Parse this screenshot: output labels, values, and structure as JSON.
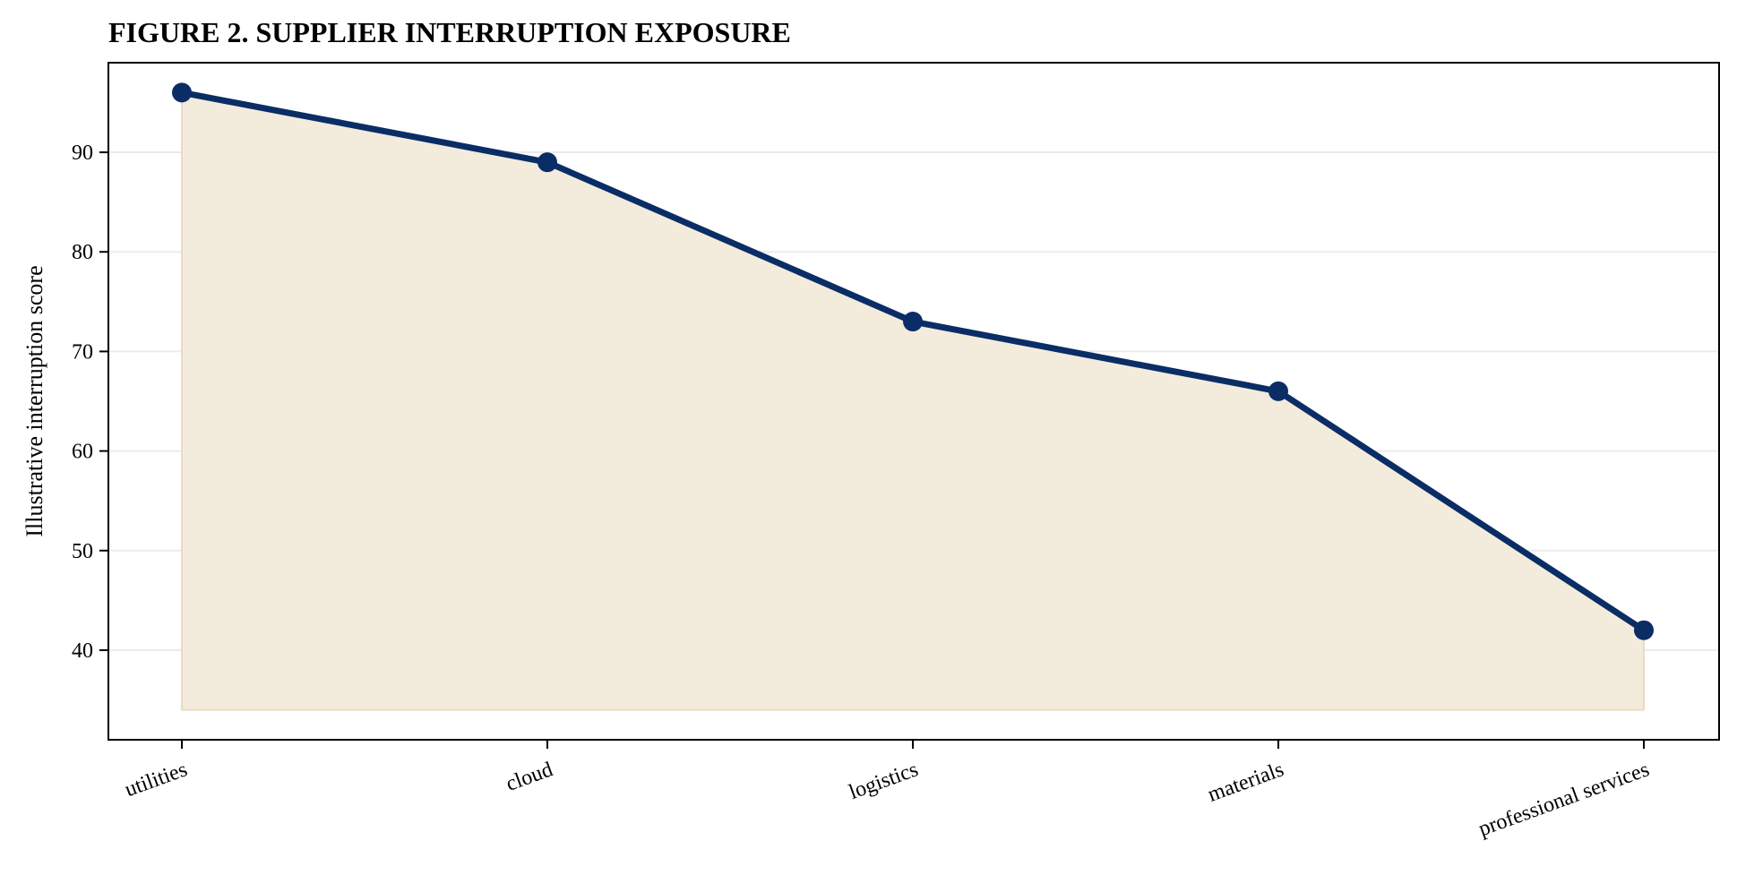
{
  "chart_data": {
    "type": "line",
    "title": "FIGURE 2. SUPPLIER INTERRUPTION EXPOSURE",
    "xlabel": "",
    "ylabel": "Illustrative interruption score",
    "categories": [
      "utilities",
      "cloud",
      "logistics",
      "materials",
      "professional services"
    ],
    "series": [
      {
        "values": [
          96,
          89,
          73,
          66,
          42
        ]
      }
    ],
    "area_fill_baseline": 34,
    "ylim": [
      31,
      99
    ],
    "yticks": [
      40,
      50,
      60,
      70,
      80,
      90
    ],
    "grid": "horizontal",
    "legend": "none",
    "colors": {
      "line": "#0b2d66",
      "marker": "#0b2d66",
      "area_fill": "#f3ebdb",
      "area_edge": "#eadcc0",
      "grid": "#ebebeb",
      "axes": "#000000"
    }
  }
}
